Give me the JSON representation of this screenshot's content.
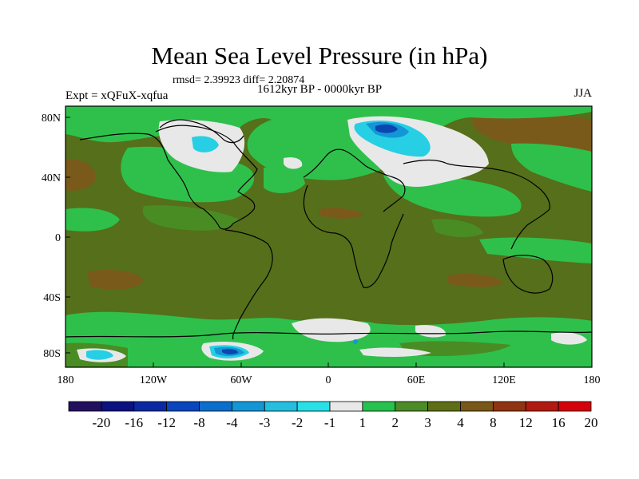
{
  "title": "Mean Sea Level Pressure (in hPa)",
  "stats": "rmsd= 2.39923 diff= 2.20874",
  "experiment": "Expt = xQFuX-xqfua",
  "period": "1612kyr BP - 0000kyr BP",
  "season": "JJA",
  "lat_ticks": [
    "80N",
    "40N",
    "0",
    "40S",
    "80S"
  ],
  "lon_ticks": [
    "180",
    "120W",
    "60W",
    "0",
    "60E",
    "120E",
    "180"
  ],
  "colorbar": {
    "labels": [
      "-20",
      "-16",
      "-12",
      "-8",
      "-4",
      "-3",
      "-2",
      "-1",
      "1",
      "2",
      "3",
      "4",
      "8",
      "12",
      "16",
      "20"
    ],
    "colors": [
      "#22105f",
      "#0b117f",
      "#0b28a3",
      "#0945bb",
      "#0a6fcb",
      "#1496d6",
      "#26bedf",
      "#28e0e6",
      "#e8e8e8",
      "#27c24e",
      "#4c8b26",
      "#5d6e16",
      "#795718",
      "#8f3412",
      "#b01a10",
      "#d4000c"
    ]
  },
  "colors": {
    "base": "#556f1a",
    "green": "#2fc04c",
    "lightgreen": "#4a8c24",
    "white": "#e8e8e8",
    "cyan": "#26cfe3",
    "lightblue": "#1496d6",
    "blue": "#0a45b0",
    "brown": "#7a5a1a"
  }
}
